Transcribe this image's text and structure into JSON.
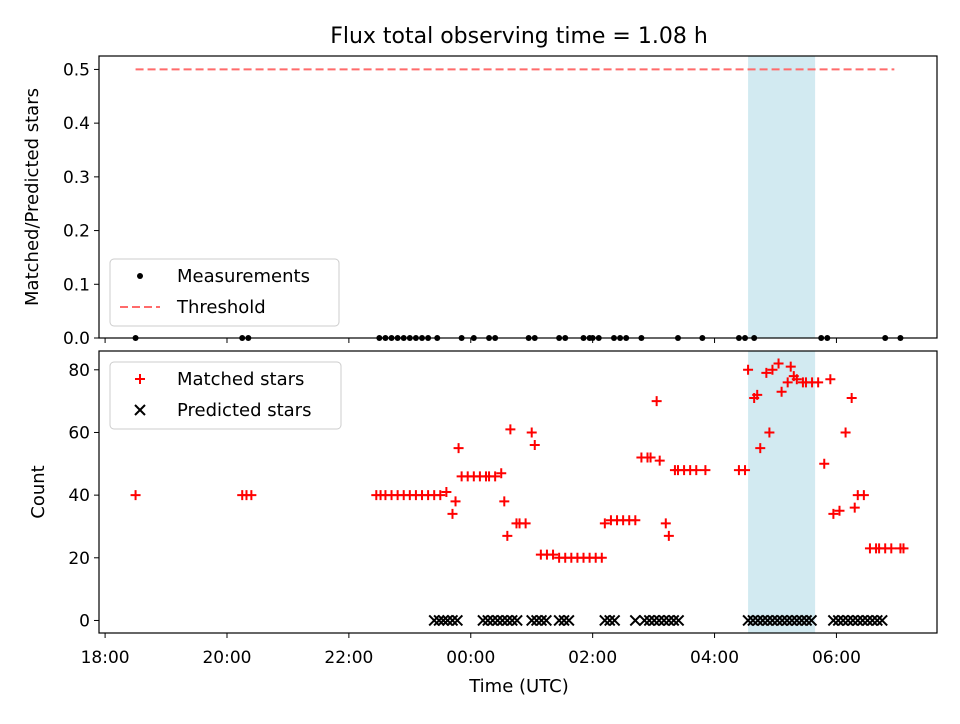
{
  "chart_data": {
    "type": "scatter",
    "title": "Flux total observing time = 1.08 h",
    "xlabel": "Time (UTC)",
    "x_unit": "hours since 18:00 UTC",
    "x_ticks": [
      {
        "value": 0,
        "label": "18:00"
      },
      {
        "value": 2,
        "label": "20:00"
      },
      {
        "value": 4,
        "label": "22:00"
      },
      {
        "value": 6,
        "label": "00:00"
      },
      {
        "value": 8,
        "label": "02:00"
      },
      {
        "value": 10,
        "label": "04:00"
      },
      {
        "value": 12,
        "label": "06:00"
      }
    ],
    "xlim": [
      -0.1,
      13.65
    ],
    "highlight_span": {
      "x0": 10.55,
      "x1": 11.65,
      "color": "#add8e6"
    },
    "panels": [
      {
        "ylabel": "Matched/Predicted stars",
        "ylim": [
          0,
          0.525
        ],
        "y_ticks": [
          {
            "value": 0,
            "label": "0.0"
          },
          {
            "value": 0.1,
            "label": "0.1"
          },
          {
            "value": 0.2,
            "label": "0.2"
          },
          {
            "value": 0.3,
            "label": "0.3"
          },
          {
            "value": 0.4,
            "label": "0.4"
          },
          {
            "value": 0.5,
            "label": "0.5"
          }
        ],
        "legend": [
          {
            "label": "Measurements",
            "marker": "dot",
            "color": "#000000"
          },
          {
            "label": "Threshold",
            "marker": "dashed-line",
            "color": "#ff6b6b"
          }
        ],
        "threshold": {
          "value": 0.5,
          "x0": 0.5,
          "x1": 12.95,
          "color": "#ff6b6b"
        },
        "measurements": {
          "x": [
            0.5,
            2.25,
            2.35,
            4.5,
            4.6,
            4.7,
            4.8,
            4.9,
            5.0,
            5.1,
            5.2,
            5.3,
            5.45,
            5.85,
            6.05,
            6.3,
            6.4,
            6.95,
            7.05,
            7.45,
            7.55,
            7.85,
            7.95,
            8.0,
            8.1,
            8.35,
            8.45,
            8.55,
            8.8,
            9.4,
            9.8,
            10.4,
            10.5,
            10.65,
            11.75,
            11.85,
            12.8,
            13.05
          ],
          "y": [
            0,
            0,
            0,
            0,
            0,
            0,
            0,
            0,
            0,
            0,
            0,
            0,
            0,
            0,
            0,
            0,
            0,
            0,
            0,
            0,
            0,
            0,
            0,
            0,
            0,
            0,
            0,
            0,
            0,
            0,
            0,
            0,
            0,
            0,
            0,
            0,
            0,
            0
          ]
        }
      },
      {
        "ylabel": "Count",
        "ylim": [
          -4,
          86
        ],
        "y_ticks": [
          {
            "value": 0,
            "label": "0"
          },
          {
            "value": 20,
            "label": "20"
          },
          {
            "value": 40,
            "label": "40"
          },
          {
            "value": 60,
            "label": "60"
          },
          {
            "value": 80,
            "label": "80"
          }
        ],
        "legend": [
          {
            "label": "Matched stars",
            "marker": "plus",
            "color": "#ff0000"
          },
          {
            "label": "Predicted stars",
            "marker": "x",
            "color": "#000000"
          }
        ],
        "series": [
          {
            "name": "Matched stars",
            "marker": "plus",
            "color": "#ff0000",
            "x": [
              0.5,
              2.25,
              2.32,
              2.4,
              4.45,
              4.52,
              4.6,
              4.7,
              4.8,
              4.9,
              5.0,
              5.1,
              5.2,
              5.3,
              5.4,
              5.5,
              5.6,
              5.7,
              5.75,
              5.8,
              5.85,
              5.95,
              6.05,
              6.15,
              6.25,
              6.3,
              6.4,
              6.5,
              6.55,
              6.6,
              6.65,
              6.75,
              6.8,
              6.9,
              7.0,
              7.05,
              7.15,
              7.25,
              7.35,
              7.45,
              7.55,
              7.65,
              7.75,
              7.85,
              7.95,
              8.05,
              8.15,
              8.2,
              8.3,
              8.4,
              8.5,
              8.6,
              8.7,
              8.8,
              8.9,
              8.95,
              9.05,
              9.1,
              9.2,
              9.25,
              9.35,
              9.4,
              9.5,
              9.6,
              9.7,
              9.85,
              10.4,
              10.5,
              10.55,
              10.65,
              10.7,
              10.75,
              10.85,
              10.9,
              10.95,
              11.05,
              11.1,
              11.2,
              11.25,
              11.3,
              11.35,
              11.45,
              11.5,
              11.6,
              11.7,
              11.8,
              11.9,
              11.95,
              12.05,
              12.15,
              12.25,
              12.3,
              12.35,
              12.45,
              12.55,
              12.65,
              12.7,
              12.8,
              12.9,
              13.05,
              13.1
            ],
            "y": [
              40,
              40,
              40,
              40,
              40,
              40,
              40,
              40,
              40,
              40,
              40,
              40,
              40,
              40,
              40,
              40,
              41,
              34,
              38,
              55,
              46,
              46,
              46,
              46,
              46,
              46,
              46,
              47,
              38,
              27,
              61,
              31,
              31,
              31,
              60,
              56,
              21,
              21,
              21,
              20,
              20,
              20,
              20,
              20,
              20,
              20,
              20,
              31,
              32,
              32,
              32,
              32,
              32,
              52,
              52,
              52,
              70,
              51,
              31,
              27,
              48,
              48,
              48,
              48,
              48,
              48,
              48,
              48,
              80,
              71,
              72,
              55,
              79,
              60,
              80,
              82,
              73,
              76,
              81,
              78,
              77,
              76,
              76,
              76,
              76,
              50,
              77,
              34,
              35,
              60,
              71,
              36,
              40,
              40,
              23,
              23,
              23,
              23,
              23,
              23,
              23
            ]
          },
          {
            "name": "Predicted stars",
            "marker": "x",
            "color": "#000000",
            "x": [
              5.4,
              5.48,
              5.55,
              5.62,
              5.7,
              5.78,
              6.2,
              6.28,
              6.36,
              6.44,
              6.52,
              6.6,
              6.68,
              6.76,
              7.0,
              7.08,
              7.16,
              7.24,
              7.45,
              7.53,
              7.61,
              8.2,
              8.28,
              8.36,
              8.7,
              8.85,
              8.93,
              9.01,
              9.09,
              9.17,
              9.25,
              9.33,
              9.41,
              10.55,
              10.63,
              10.71,
              10.79,
              10.87,
              10.95,
              11.03,
              11.11,
              11.19,
              11.27,
              11.35,
              11.43,
              11.51,
              11.59,
              11.95,
              12.03,
              12.11,
              12.19,
              12.27,
              12.35,
              12.43,
              12.51,
              12.59,
              12.67,
              12.75
            ],
            "y": [
              0,
              0,
              0,
              0,
              0,
              0,
              0,
              0,
              0,
              0,
              0,
              0,
              0,
              0,
              0,
              0,
              0,
              0,
              0,
              0,
              0,
              0,
              0,
              0,
              0,
              0,
              0,
              0,
              0,
              0,
              0,
              0,
              0,
              0,
              0,
              0,
              0,
              0,
              0,
              0,
              0,
              0,
              0,
              0,
              0,
              0,
              0,
              0,
              0,
              0,
              0,
              0,
              0,
              0,
              0,
              0,
              0,
              0
            ]
          }
        ]
      }
    ]
  }
}
